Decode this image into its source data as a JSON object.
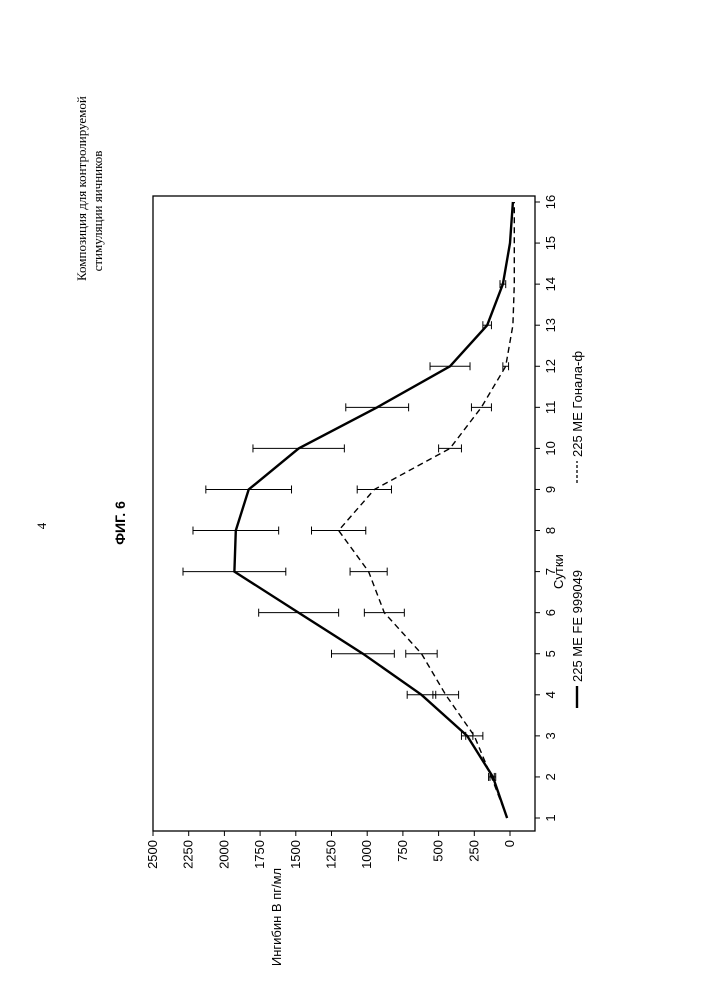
{
  "page": {
    "number": "4",
    "header_line1": "Композиция для контролируемой",
    "header_line2": "стимуляции яичников",
    "figure_label": "ФИГ. 6"
  },
  "chart_data": {
    "type": "line",
    "title": "",
    "xlabel": "Сутки",
    "ylabel": "Ингибин В пг/мл",
    "x": [
      1,
      2,
      3,
      4,
      5,
      6,
      7,
      8,
      9,
      10,
      11,
      12,
      13,
      14,
      15,
      16
    ],
    "xticks": [
      1,
      2,
      3,
      4,
      5,
      6,
      7,
      8,
      9,
      10,
      11,
      12,
      13,
      14,
      15,
      16
    ],
    "yticks": [
      0,
      250,
      500,
      750,
      1000,
      1250,
      1500,
      1750,
      2000,
      2250,
      2500
    ],
    "xlim": [
      1,
      16
    ],
    "ylim": [
      -60,
      2500
    ],
    "orientation": "rotated -90° (x axis runs bottom-to-top)",
    "series": [
      {
        "name": "225 МЕ FE 999049",
        "style": "solid",
        "color": "#000000",
        "x": [
          1,
          2,
          3,
          4,
          5,
          6,
          7,
          8,
          9,
          10,
          11,
          12,
          13,
          14,
          15,
          16
        ],
        "y": [
          20,
          120,
          300,
          620,
          1030,
          1480,
          1930,
          1920,
          1830,
          1480,
          930,
          420,
          160,
          50,
          0,
          -20
        ],
        "err": [
          0,
          20,
          40,
          100,
          220,
          280,
          360,
          300,
          300,
          320,
          220,
          140,
          30,
          20,
          0,
          0
        ]
      },
      {
        "name": "225 МЕ Гонала-ф",
        "style": "dashed",
        "color": "#000000",
        "x": [
          1,
          2,
          3,
          4,
          5,
          6,
          7,
          8,
          9,
          10,
          11,
          12,
          13,
          14,
          15,
          16
        ],
        "y": [
          20,
          130,
          250,
          450,
          620,
          880,
          990,
          1200,
          950,
          420,
          200,
          30,
          -20,
          -30,
          -30,
          -30
        ],
        "err": [
          0,
          20,
          60,
          90,
          110,
          140,
          130,
          190,
          120,
          80,
          70,
          20,
          0,
          0,
          0,
          0
        ]
      }
    ],
    "legend_position": "below (rotated, left side of page)",
    "grid": false
  }
}
